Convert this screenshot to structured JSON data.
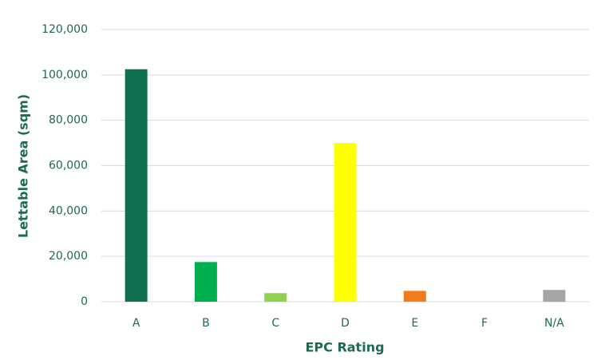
{
  "chart_data": {
    "type": "bar",
    "x_label": "EPC Rating",
    "y_label": "Lettable Area (sqm)",
    "categories": [
      "A",
      "B",
      "C",
      "D",
      "E",
      "F",
      "N/A"
    ],
    "values": [
      102500,
      17500,
      3800,
      70000,
      4800,
      0,
      5200
    ],
    "colors": [
      "#0e7050",
      "#00b050",
      "#92d050",
      "#ffff00",
      "#f47a20",
      "#a5a5a5",
      "#a5a5a5"
    ],
    "ylim": [
      0,
      120000
    ],
    "yticks": [
      0,
      {
        "value": 20000,
        "label": "20,000"
      },
      {
        "value": 40000,
        "label": "40,000"
      },
      {
        "value": 60000,
        "label": "60,000"
      },
      {
        "value": 80000,
        "label": "80,000"
      },
      {
        "value": 100000,
        "label": "100,000"
      },
      {
        "value": 120000,
        "label": "120,000"
      }
    ],
    "grid": true
  }
}
